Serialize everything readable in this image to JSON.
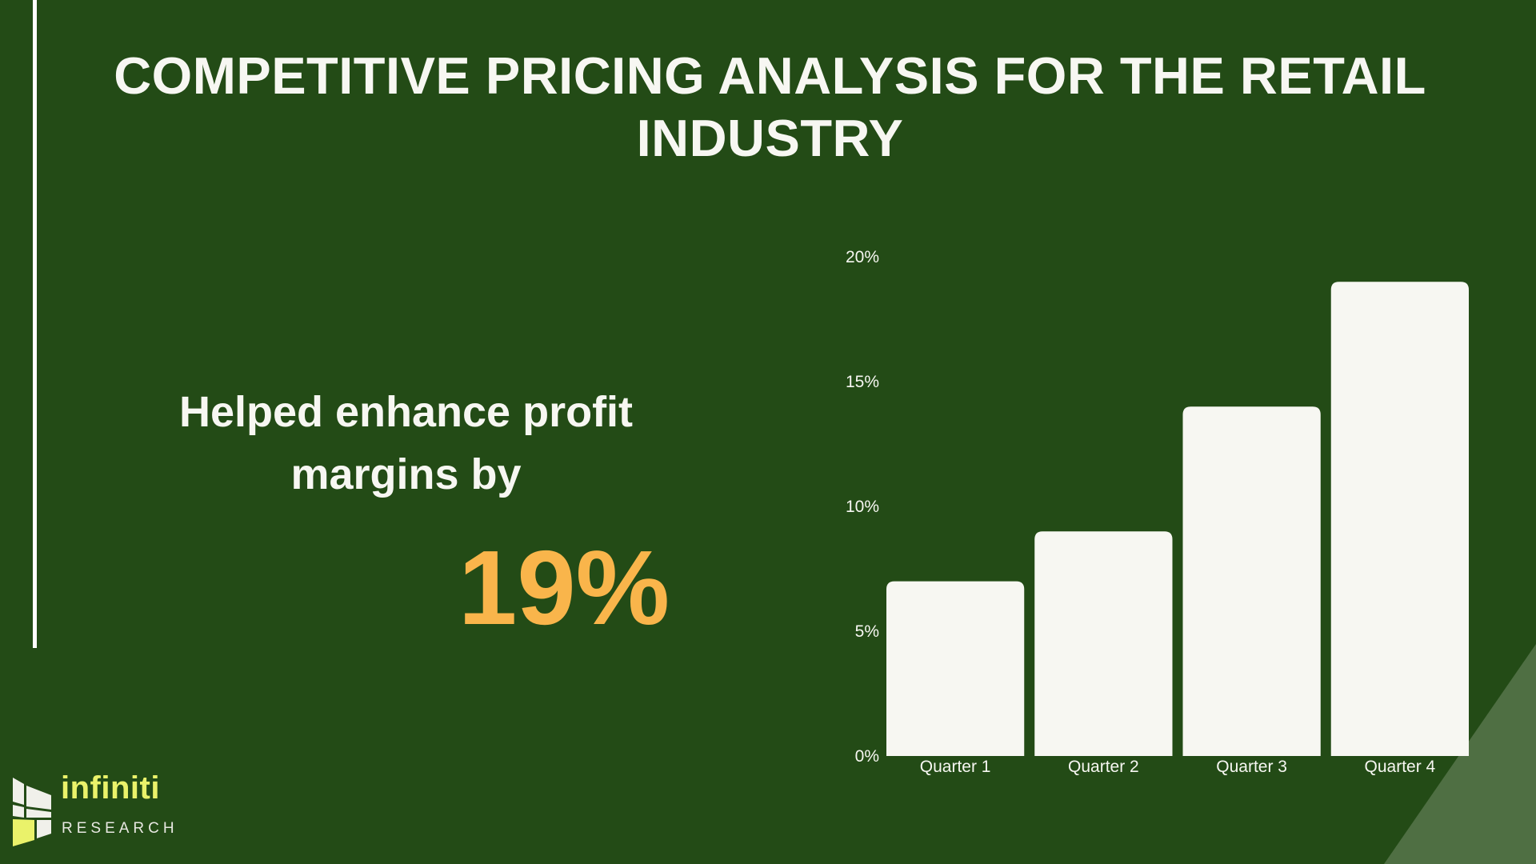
{
  "slide": {
    "title": "COMPETITIVE PRICING ANALYSIS FOR THE RETAIL INDUSTRY",
    "stat_text": "Helped enhance profit margins by",
    "stat_value": "19%"
  },
  "logo": {
    "name": "infiniti",
    "sub": "RESEARCH"
  },
  "colors": {
    "background": "#234b16",
    "bar": "#f7f7f2",
    "highlight": "#f9b54b",
    "logo_accent": "#eaf26a",
    "corner_shape": "#4f6f43"
  },
  "chart_data": {
    "type": "bar",
    "categories": [
      "Quarter 1",
      "Quarter 2",
      "Quarter 3",
      "Quarter 4"
    ],
    "values": [
      7,
      9,
      14,
      19
    ],
    "yticks": [
      "0%",
      "5%",
      "10%",
      "15%",
      "20%"
    ],
    "ylim": [
      0,
      20
    ],
    "title": "",
    "xlabel": "",
    "ylabel": "",
    "grid": false,
    "legend": "none"
  }
}
